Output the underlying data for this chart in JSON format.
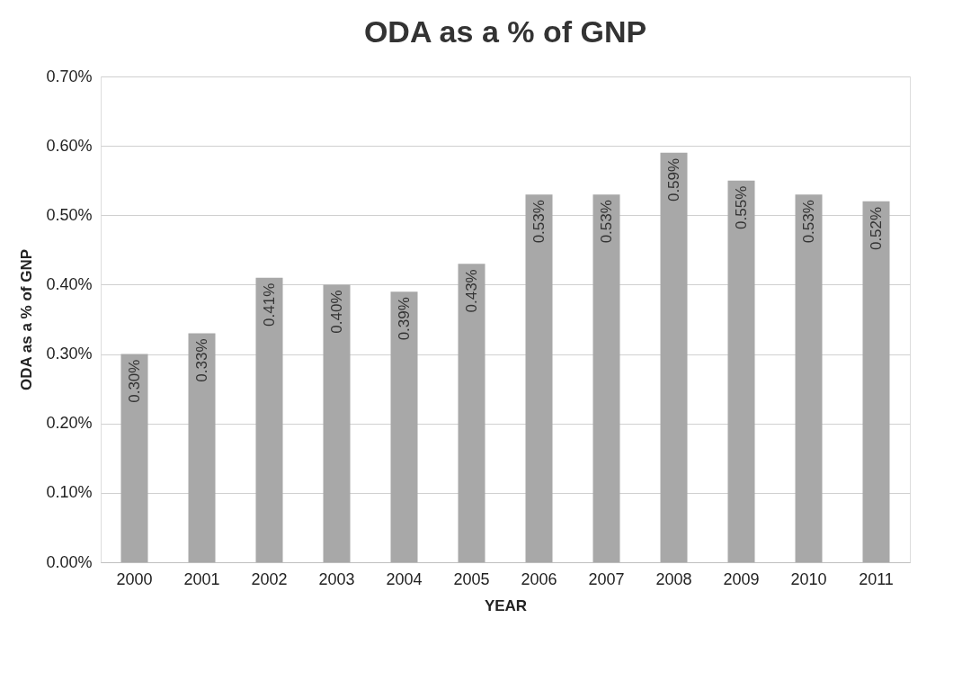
{
  "chart_data": {
    "type": "bar",
    "title": "ODA as a % of GNP",
    "xlabel": "YEAR",
    "ylabel": "ODA as a % of GNP",
    "categories": [
      "2000",
      "2001",
      "2002",
      "2003",
      "2004",
      "2005",
      "2006",
      "2007",
      "2008",
      "2009",
      "2010",
      "2011"
    ],
    "values": [
      0.3,
      0.33,
      0.41,
      0.4,
      0.39,
      0.43,
      0.53,
      0.53,
      0.59,
      0.55,
      0.53,
      0.52
    ],
    "value_labels": [
      "0.30%",
      "0.33%",
      "0.41%",
      "0.40%",
      "0.39%",
      "0.43%",
      "0.53%",
      "0.53%",
      "0.59%",
      "0.55%",
      "0.53%",
      "0.52%"
    ],
    "color": "#a8a8a8",
    "ylim": [
      0,
      0.7
    ],
    "yticks": [
      {
        "value": 0,
        "label": "0.00%"
      },
      {
        "value": 0.1,
        "label": "0.10%"
      },
      {
        "value": 0.2,
        "label": "0.20%"
      },
      {
        "value": 0.3,
        "label": "0.30%"
      },
      {
        "value": 0.4,
        "label": "0.40%"
      },
      {
        "value": 0.5,
        "label": "0.50%"
      },
      {
        "value": 0.6,
        "label": "0.60%"
      },
      {
        "value": 0.7,
        "label": "0.70%"
      }
    ],
    "grid": "y"
  }
}
